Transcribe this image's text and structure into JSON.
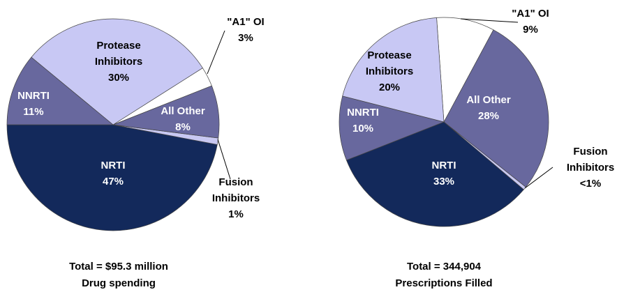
{
  "chart_data": [
    {
      "type": "pie",
      "categories": [
        "NRTI",
        "Fusion Inhibitors",
        "All Other",
        "\"A1\" OI",
        "Protease Inhibitors",
        "NNRTI"
      ],
      "values": [
        47,
        1,
        8,
        3,
        30,
        11
      ],
      "value_labels": [
        "47%",
        "1%",
        "8%",
        "3%",
        "30%",
        "11%"
      ],
      "colors": [
        "#13295b",
        "#c8c8f2",
        "#68689e",
        "#ffffff",
        "#c8c8f4",
        "#68689e"
      ],
      "total": "Total = $95.3 million",
      "caption": "Drug spending"
    },
    {
      "type": "pie",
      "categories": [
        "\"A1\" OI",
        "All Other",
        "Fusion Inhibitors",
        "NRTI",
        "NNRTI",
        "Protease Inhibitors"
      ],
      "values": [
        9,
        28,
        0.5,
        33,
        10,
        20
      ],
      "value_labels": [
        "9%",
        "28%",
        "<1%",
        "33%",
        "10%",
        "20%"
      ],
      "colors": [
        "#ffffff",
        "#68689e",
        "#c8c8f2",
        "#13295b",
        "#68689e",
        "#c8c8f4"
      ],
      "total": "Total = 344,904",
      "caption": "Prescriptions Filled"
    }
  ]
}
